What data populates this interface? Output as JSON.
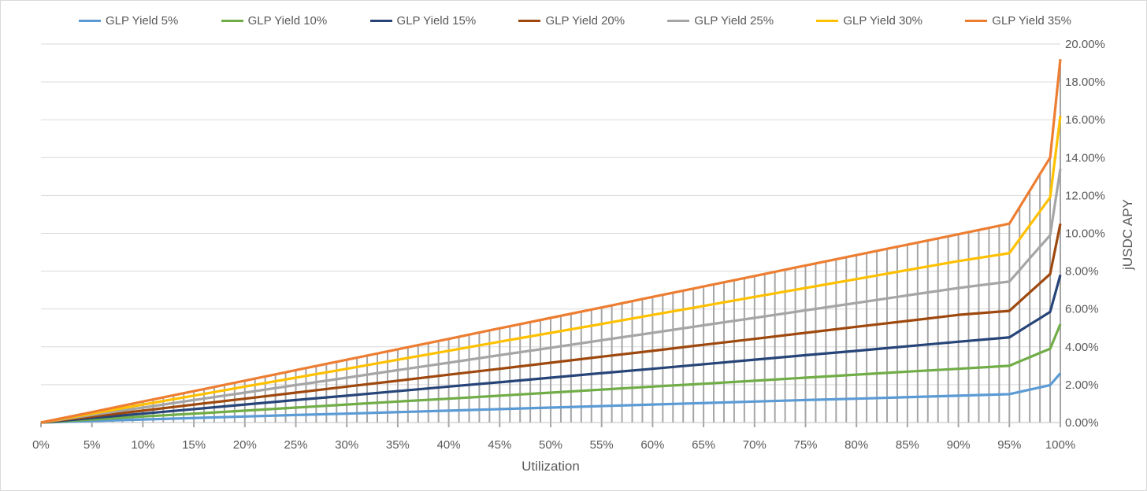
{
  "chart_data": {
    "type": "line",
    "xlabel": "Utilization",
    "ylabel": "jUSDC APY",
    "y_axis_side": "right",
    "ylim": [
      0,
      20
    ],
    "y_ticks": [
      "0.00%",
      "2.00%",
      "4.00%",
      "6.00%",
      "8.00%",
      "10.00%",
      "12.00%",
      "14.00%",
      "16.00%",
      "18.00%",
      "20.00%"
    ],
    "x_tick_labels": [
      "0%",
      "5%",
      "10%",
      "15%",
      "20%",
      "25%",
      "30%",
      "35%",
      "40%",
      "45%",
      "50%",
      "55%",
      "60%",
      "65%",
      "70%",
      "75%",
      "80%",
      "85%",
      "90%",
      "95%",
      "100%"
    ],
    "x_range": [
      0,
      100
    ],
    "x_category_step": 1,
    "grid": "horizontal",
    "drop_lines": true,
    "legend": "top",
    "x": [
      0,
      5,
      10,
      15,
      20,
      25,
      30,
      35,
      40,
      45,
      50,
      55,
      60,
      65,
      70,
      75,
      80,
      85,
      90,
      95,
      96,
      97,
      98,
      99,
      100
    ],
    "series": [
      {
        "name": "GLP Yield 5%",
        "color": "#5b9bd5",
        "values": [
          0,
          0.08,
          0.16,
          0.24,
          0.32,
          0.4,
          0.47,
          0.55,
          0.63,
          0.71,
          0.79,
          0.87,
          0.95,
          1.03,
          1.11,
          1.19,
          1.26,
          1.34,
          1.42,
          1.5,
          1.62,
          1.74,
          1.86,
          1.98,
          2.6
        ]
      },
      {
        "name": "GLP Yield 10%",
        "color": "#70ad47",
        "values": [
          0,
          0.16,
          0.32,
          0.47,
          0.63,
          0.79,
          0.95,
          1.11,
          1.26,
          1.42,
          1.58,
          1.74,
          1.9,
          2.05,
          2.21,
          2.37,
          2.53,
          2.69,
          2.84,
          3.0,
          3.23,
          3.45,
          3.68,
          3.9,
          5.2
        ]
      },
      {
        "name": "GLP Yield 15%",
        "color": "#264478",
        "values": [
          0,
          0.24,
          0.47,
          0.71,
          0.95,
          1.19,
          1.42,
          1.66,
          1.9,
          2.13,
          2.37,
          2.61,
          2.84,
          3.08,
          3.32,
          3.56,
          3.79,
          4.03,
          4.27,
          4.5,
          4.84,
          5.18,
          5.51,
          5.85,
          7.8
        ]
      },
      {
        "name": "GLP Yield 20%",
        "color": "#9e480e",
        "values": [
          0,
          0.32,
          0.63,
          0.95,
          1.26,
          1.58,
          1.9,
          2.21,
          2.53,
          2.84,
          3.16,
          3.48,
          3.79,
          4.11,
          4.42,
          4.74,
          5.06,
          5.37,
          5.69,
          5.9,
          6.39,
          6.88,
          7.36,
          7.85,
          10.5
        ]
      },
      {
        "name": "GLP Yield 25%",
        "color": "#a5a5a5",
        "values": [
          0,
          0.4,
          0.79,
          1.19,
          1.58,
          1.98,
          2.37,
          2.77,
          3.16,
          3.56,
          3.95,
          4.35,
          4.74,
          5.14,
          5.53,
          5.93,
          6.32,
          6.72,
          7.11,
          7.45,
          8.06,
          8.68,
          9.29,
          9.9,
          13.4
        ]
      },
      {
        "name": "GLP Yield 30%",
        "color": "#ffc000",
        "values": [
          0,
          0.47,
          0.95,
          1.42,
          1.9,
          2.37,
          2.84,
          3.32,
          3.79,
          4.27,
          4.74,
          5.21,
          5.69,
          6.16,
          6.64,
          7.11,
          7.58,
          8.06,
          8.53,
          8.95,
          9.69,
          10.43,
          11.16,
          11.9,
          16.2
        ]
      },
      {
        "name": "GLP Yield 35%",
        "color": "#ed7d31",
        "values": [
          0,
          0.55,
          1.11,
          1.66,
          2.21,
          2.77,
          3.32,
          3.87,
          4.42,
          4.98,
          5.53,
          6.08,
          6.64,
          7.19,
          7.74,
          8.3,
          8.85,
          9.4,
          9.95,
          10.51,
          11.38,
          12.25,
          13.13,
          14.0,
          19.2
        ]
      }
    ]
  }
}
